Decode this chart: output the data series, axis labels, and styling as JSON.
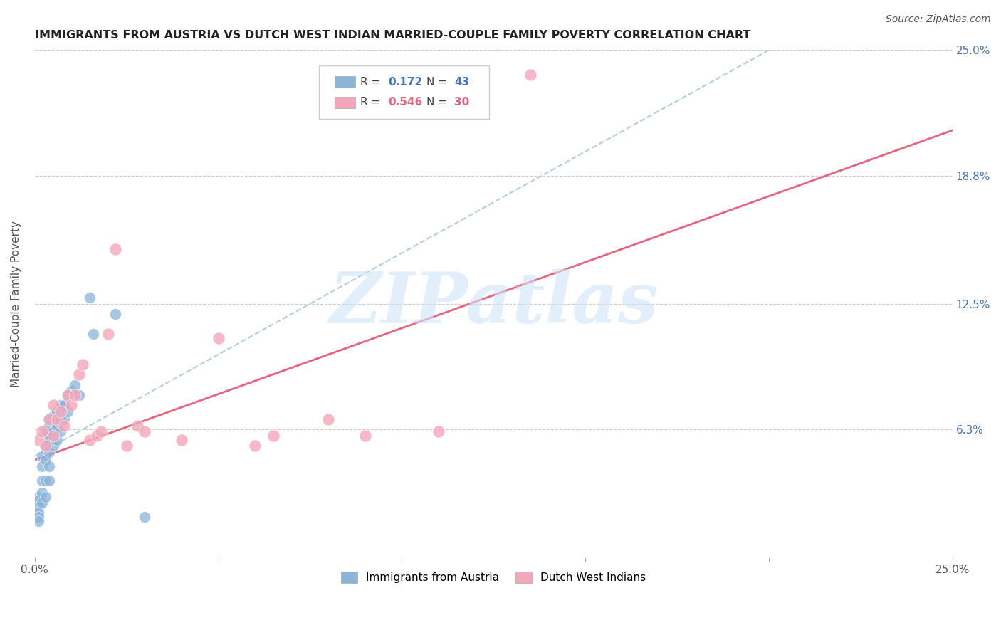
{
  "title": "IMMIGRANTS FROM AUSTRIA VS DUTCH WEST INDIAN MARRIED-COUPLE FAMILY POVERTY CORRELATION CHART",
  "source": "Source: ZipAtlas.com",
  "ylabel": "Married-Couple Family Poverty",
  "xlim": [
    0,
    0.25
  ],
  "ylim": [
    0,
    0.25
  ],
  "xtick_positions": [
    0.0,
    0.05,
    0.1,
    0.15,
    0.2,
    0.25
  ],
  "xticklabels": [
    "0.0%",
    "",
    "",
    "",
    "",
    "25.0%"
  ],
  "ytick_positions": [
    0.0,
    0.063,
    0.125,
    0.188,
    0.25
  ],
  "ytick_labels_right": [
    "",
    "6.3%",
    "12.5%",
    "18.8%",
    "25.0%"
  ],
  "color_blue": "#8ab4d8",
  "color_pink": "#f4a7ba",
  "line_blue_color": "#a8c8e8",
  "line_pink_color": "#e8637e",
  "watermark_text": "ZIPatlas",
  "watermark_color": "#d0e4f5",
  "legend_R1": "0.172",
  "legend_N1": "43",
  "legend_R2": "0.546",
  "legend_N2": "30",
  "legend_color_blue": "#4472c4",
  "legend_color_pink": "#e8637e",
  "austria_x": [
    0.001,
    0.001,
    0.001,
    0.001,
    0.001,
    0.001,
    0.002,
    0.002,
    0.002,
    0.002,
    0.002,
    0.003,
    0.003,
    0.003,
    0.003,
    0.003,
    0.003,
    0.004,
    0.004,
    0.004,
    0.004,
    0.004,
    0.004,
    0.005,
    0.005,
    0.005,
    0.006,
    0.006,
    0.006,
    0.007,
    0.007,
    0.007,
    0.008,
    0.008,
    0.009,
    0.009,
    0.01,
    0.011,
    0.012,
    0.015,
    0.016,
    0.022,
    0.03
  ],
  "austria_y": [
    0.03,
    0.028,
    0.025,
    0.022,
    0.02,
    0.018,
    0.05,
    0.045,
    0.038,
    0.032,
    0.027,
    0.062,
    0.058,
    0.055,
    0.048,
    0.038,
    0.03,
    0.068,
    0.065,
    0.058,
    0.052,
    0.045,
    0.038,
    0.07,
    0.062,
    0.055,
    0.072,
    0.065,
    0.058,
    0.075,
    0.068,
    0.062,
    0.075,
    0.068,
    0.08,
    0.072,
    0.082,
    0.085,
    0.08,
    0.128,
    0.11,
    0.12,
    0.02
  ],
  "dutch_x": [
    0.001,
    0.002,
    0.003,
    0.004,
    0.005,
    0.005,
    0.006,
    0.007,
    0.008,
    0.009,
    0.01,
    0.011,
    0.012,
    0.013,
    0.015,
    0.017,
    0.018,
    0.02,
    0.022,
    0.025,
    0.028,
    0.03,
    0.04,
    0.05,
    0.06,
    0.065,
    0.08,
    0.09,
    0.11,
    0.135
  ],
  "dutch_y": [
    0.058,
    0.062,
    0.055,
    0.068,
    0.06,
    0.075,
    0.068,
    0.072,
    0.065,
    0.08,
    0.075,
    0.08,
    0.09,
    0.095,
    0.058,
    0.06,
    0.062,
    0.11,
    0.152,
    0.055,
    0.065,
    0.062,
    0.058,
    0.108,
    0.055,
    0.06,
    0.068,
    0.06,
    0.062,
    0.238
  ]
}
